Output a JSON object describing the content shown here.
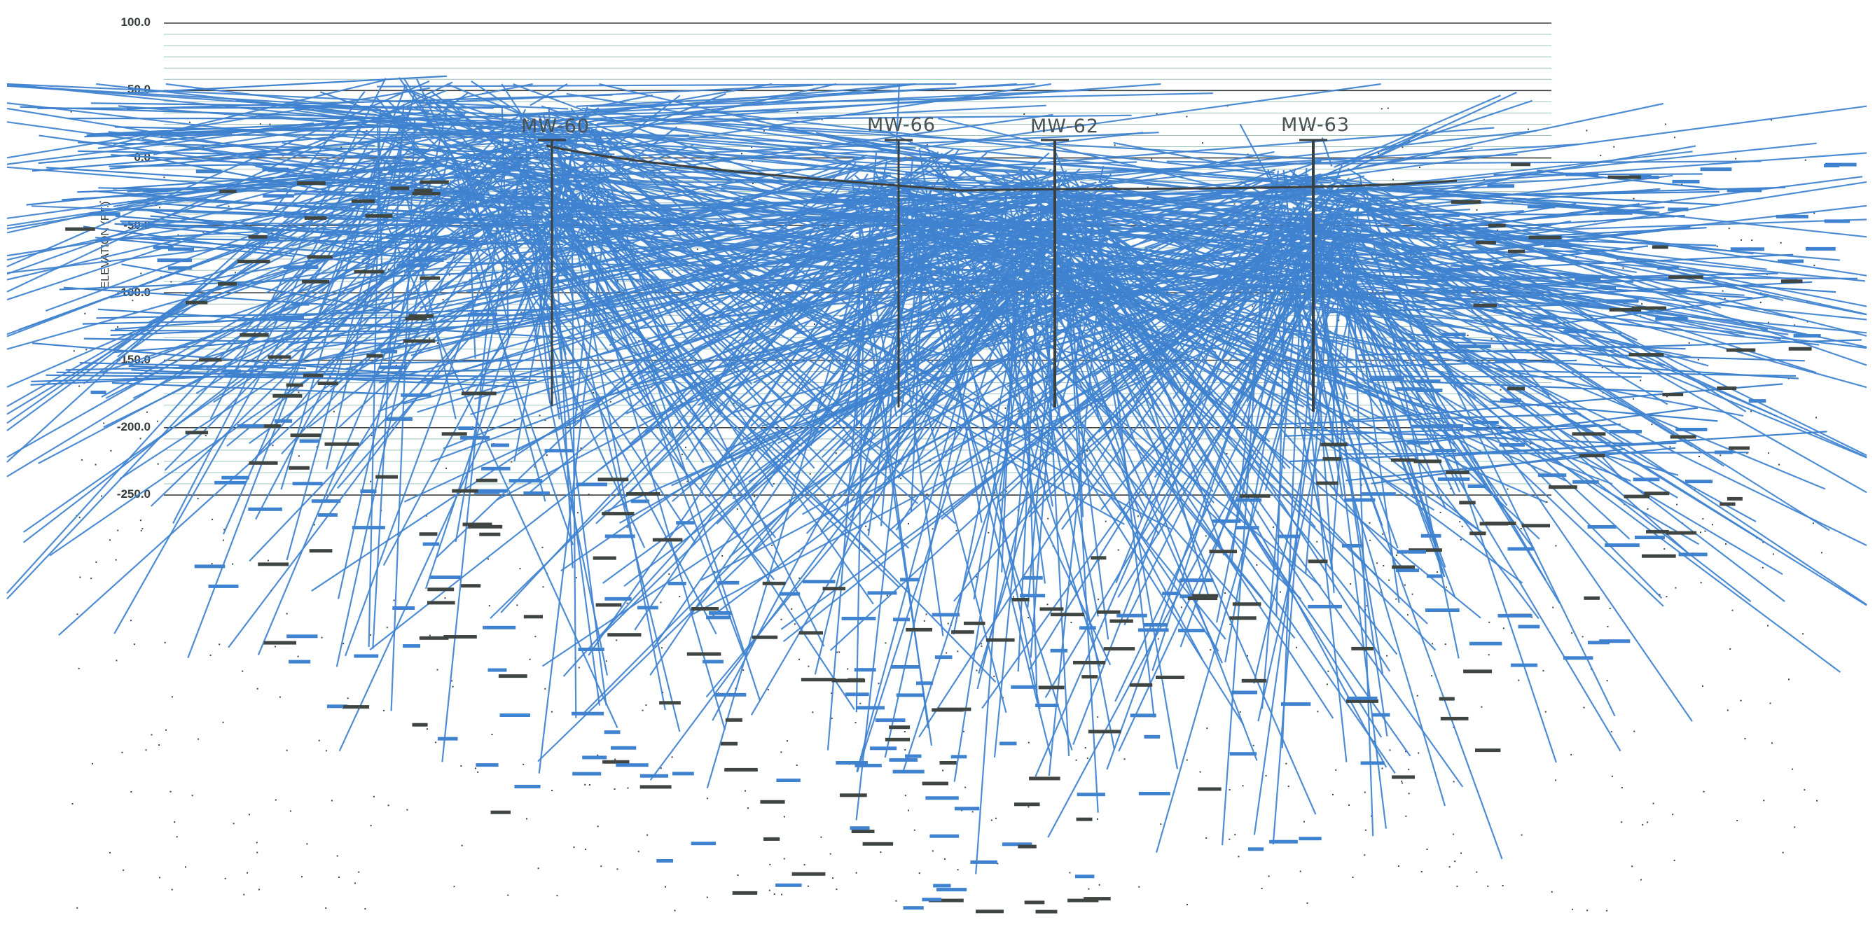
{
  "figure": {
    "axis_title": "ELEVATION (FT.)",
    "elevation_ticks": [
      "100.0",
      "50.0",
      "0.0",
      "-50.0",
      "-100.0",
      "-150.0",
      "-200.0",
      "-250.0"
    ],
    "wells": [
      {
        "label": "MW-60"
      },
      {
        "label": "MW-66"
      },
      {
        "label": "MW-62"
      },
      {
        "label": "MW-63"
      }
    ],
    "colors": {
      "traces": "#3f82cf",
      "grid_major": "#3a3f40",
      "grid_minor": "#9fc4bc",
      "ground_surface": "#3a3f40",
      "tags": "#3f4642",
      "wells": "#3a3f40"
    }
  }
}
